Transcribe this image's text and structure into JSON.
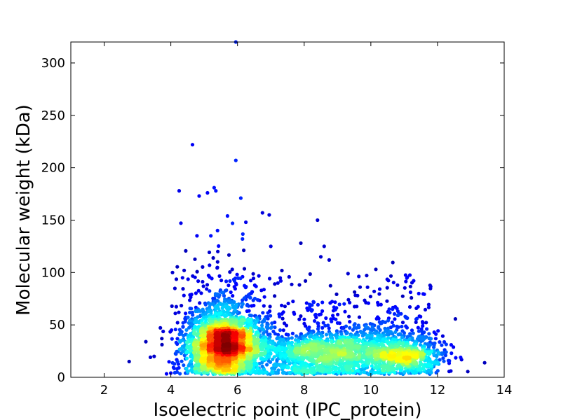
{
  "chart_data": {
    "type": "scatter",
    "title": "",
    "xlabel": "Isoelectric point (IPC_protein)",
    "ylabel": "Molecular weight (kDa)",
    "xlim": [
      1,
      14
    ],
    "ylim": [
      0,
      320
    ],
    "xticks": [
      2,
      4,
      6,
      8,
      10,
      12,
      14
    ],
    "yticks": [
      0,
      50,
      100,
      150,
      200,
      250,
      300
    ],
    "grid": false,
    "legend": "none",
    "color_encoding": "point density (jet colormap, blue = low, red = high)",
    "colormap": [
      "#00007f",
      "#0000ff",
      "#0080ff",
      "#00ffff",
      "#80ff80",
      "#ffff00",
      "#ff8000",
      "#ff0000",
      "#7f0000"
    ],
    "dense_clusters": [
      {
        "x_center": 5.6,
        "y_center": 28,
        "x_spread": 0.55,
        "y_spread": 14
      },
      {
        "x_center": 8.7,
        "y_center": 20,
        "x_spread": 1.1,
        "y_spread": 10
      },
      {
        "x_center": 11.0,
        "y_center": 18,
        "x_spread": 0.6,
        "y_spread": 9
      }
    ],
    "outlier_points": [
      {
        "x": 5.95,
        "y": 320
      },
      {
        "x": 4.65,
        "y": 222
      },
      {
        "x": 5.95,
        "y": 207
      },
      {
        "x": 4.25,
        "y": 178
      },
      {
        "x": 5.3,
        "y": 181
      },
      {
        "x": 5.35,
        "y": 178
      },
      {
        "x": 5.1,
        "y": 176
      },
      {
        "x": 4.85,
        "y": 173
      },
      {
        "x": 6.1,
        "y": 171
      },
      {
        "x": 6.75,
        "y": 157
      },
      {
        "x": 6.95,
        "y": 155
      },
      {
        "x": 5.7,
        "y": 154
      },
      {
        "x": 6.25,
        "y": 148
      },
      {
        "x": 8.4,
        "y": 150
      },
      {
        "x": 5.85,
        "y": 147
      },
      {
        "x": 5.4,
        "y": 140
      },
      {
        "x": 5.2,
        "y": 135
      },
      {
        "x": 7.9,
        "y": 128
      },
      {
        "x": 8.6,
        "y": 125
      },
      {
        "x": 7.0,
        "y": 125
      },
      {
        "x": 6.15,
        "y": 132
      },
      {
        "x": 4.4,
        "y": 102
      },
      {
        "x": 4.05,
        "y": 100
      },
      {
        "x": 4.35,
        "y": 95
      },
      {
        "x": 10.15,
        "y": 103
      },
      {
        "x": 10.8,
        "y": 88
      },
      {
        "x": 9.9,
        "y": 86
      },
      {
        "x": 10.1,
        "y": 82
      },
      {
        "x": 8.75,
        "y": 112
      },
      {
        "x": 8.5,
        "y": 115
      },
      {
        "x": 3.25,
        "y": 34
      },
      {
        "x": 2.75,
        "y": 15
      },
      {
        "x": 3.5,
        "y": 20
      },
      {
        "x": 11.9,
        "y": 43
      },
      {
        "x": 12.4,
        "y": 6
      },
      {
        "x": 11.55,
        "y": 53
      },
      {
        "x": 10.55,
        "y": 65
      },
      {
        "x": 9.2,
        "y": 70
      },
      {
        "x": 7.3,
        "y": 92
      }
    ]
  }
}
